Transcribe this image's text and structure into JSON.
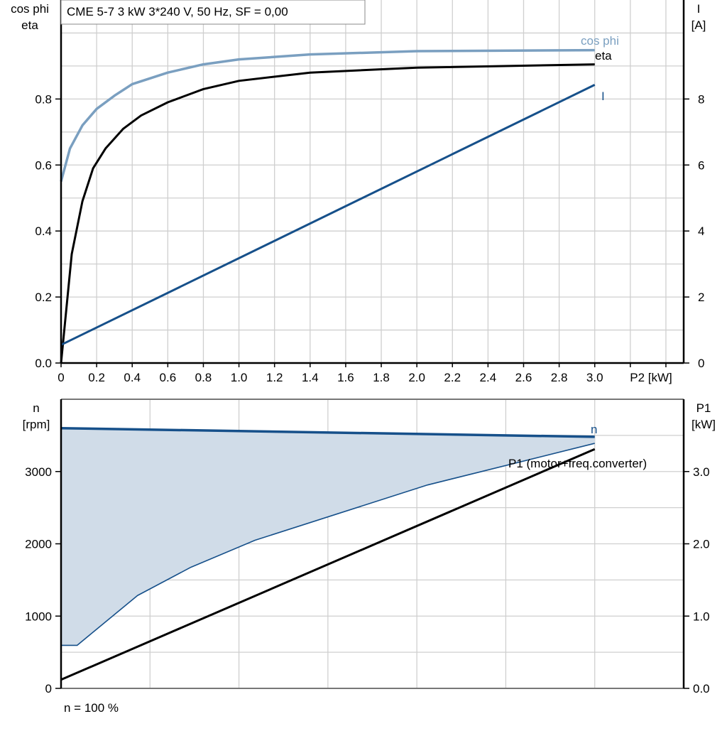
{
  "chart_data": [
    {
      "type": "line",
      "title": "CME 5-7   3 kW   3*240 V, 50 Hz, SF = 0,00",
      "xlabel": "P2 [kW]",
      "ylabel_left": [
        "cos phi",
        "eta"
      ],
      "ylabel_right": [
        "I",
        "[A]"
      ],
      "xlim": [
        0,
        3.5
      ],
      "ylim_left": [
        0,
        1.1
      ],
      "ylim_right": [
        0,
        11
      ],
      "grid": true,
      "x_ticks": [
        "0",
        "0.2",
        "0.4",
        "0.6",
        "0.8",
        "1.0",
        "1.2",
        "1.4",
        "1.6",
        "1.8",
        "2.0",
        "2.2",
        "2.4",
        "2.6",
        "2.8",
        "3.0"
      ],
      "y_ticks_left": [
        "0.0",
        "0.2",
        "0.4",
        "0.6",
        "0.8"
      ],
      "y_ticks_right": [
        "0",
        "2",
        "4",
        "6",
        "8"
      ],
      "series": [
        {
          "name": "cos phi",
          "axis": "left",
          "color": "#7a9fc0",
          "x": [
            0,
            0.05,
            0.12,
            0.2,
            0.3,
            0.4,
            0.6,
            0.8,
            1.0,
            1.4,
            2.0,
            3.0
          ],
          "y": [
            0.55,
            0.65,
            0.72,
            0.77,
            0.81,
            0.845,
            0.88,
            0.905,
            0.92,
            0.935,
            0.945,
            0.948
          ]
        },
        {
          "name": "eta",
          "axis": "left",
          "color": "#000000",
          "x": [
            0,
            0.06,
            0.12,
            0.18,
            0.25,
            0.35,
            0.45,
            0.6,
            0.8,
            1.0,
            1.4,
            2.0,
            3.0
          ],
          "y": [
            0,
            0.33,
            0.49,
            0.59,
            0.65,
            0.71,
            0.75,
            0.79,
            0.83,
            0.855,
            0.88,
            0.895,
            0.905
          ]
        },
        {
          "name": "I",
          "axis": "right",
          "color": "#16508a",
          "x": [
            0,
            3.0
          ],
          "y": [
            0.55,
            8.43
          ]
        }
      ]
    },
    {
      "type": "area",
      "xlim": [
        0,
        3.5
      ],
      "ylabel_left": [
        "n",
        "[rpm]"
      ],
      "ylabel_right": [
        "P1",
        "[kW]"
      ],
      "ylim_left": [
        0,
        4000
      ],
      "ylim_right": [
        0,
        4.0
      ],
      "grid": true,
      "y_ticks_left": [
        "0",
        "1000",
        "2000",
        "3000"
      ],
      "y_ticks_right": [
        "0.0",
        "1.0",
        "2.0",
        "3.0"
      ],
      "footnote": "n = 100 %",
      "fill_color": "#d0dce8",
      "series": [
        {
          "name": "n",
          "axis": "left",
          "color": "#16508a",
          "x": [
            0,
            3.0
          ],
          "y": [
            3600,
            3480
          ]
        },
        {
          "axis": "left",
          "color": "#16508a",
          "x": [
            0,
            0.09,
            0.43,
            0.73,
            1.09,
            2.06,
            3.0
          ],
          "y": [
            595,
            595,
            1285,
            1676,
            2049,
            2814,
            3390
          ]
        },
        {
          "name": "P1 (motor+freq.converter)",
          "axis": "right",
          "color": "#000000",
          "x": [
            0,
            3.0
          ],
          "y": [
            0.12,
            3.31
          ]
        }
      ]
    }
  ]
}
